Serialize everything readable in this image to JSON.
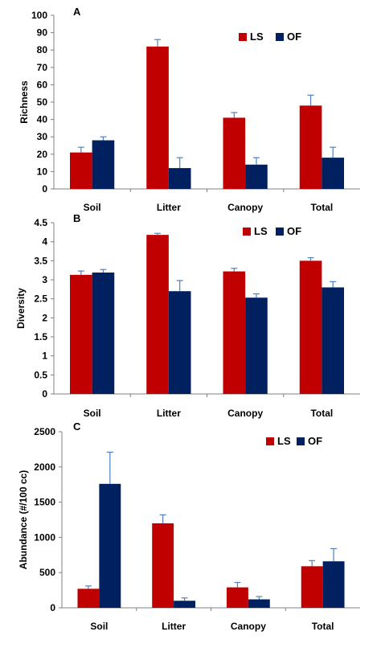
{
  "colors": {
    "LS": "#c00000",
    "OF": "#002060",
    "error": "#4f81bd",
    "axis": "#808080"
  },
  "chart_data": [
    {
      "panel": "A",
      "type": "bar",
      "ylabel": "Richness",
      "ylim": [
        0,
        100
      ],
      "yticks": [
        "0",
        "10",
        "20",
        "30",
        "40",
        "50",
        "60",
        "70",
        "80",
        "90",
        "100"
      ],
      "categories": [
        "Soil",
        "Litter",
        "Canopy",
        "Total"
      ],
      "legend": "top-right",
      "series": [
        {
          "name": "LS",
          "values": [
            21,
            82,
            41,
            48
          ],
          "errors": [
            3,
            4,
            3,
            6
          ]
        },
        {
          "name": "OF",
          "values": [
            28,
            12,
            14,
            18
          ],
          "errors": [
            2,
            6,
            4,
            6
          ]
        }
      ]
    },
    {
      "panel": "B",
      "type": "bar",
      "ylabel": "Diversity",
      "ylim": [
        0,
        4.5
      ],
      "yticks": [
        "0",
        "0.5",
        "1",
        "1.5",
        "2",
        "2.5",
        "3",
        "3.5",
        "4",
        "4.5"
      ],
      "categories": [
        "Soil",
        "Litter",
        "Canopy",
        "Total"
      ],
      "legend": "top-right",
      "series": [
        {
          "name": "LS",
          "values": [
            3.13,
            4.18,
            3.22,
            3.5
          ],
          "errors": [
            0.1,
            0.04,
            0.08,
            0.08
          ]
        },
        {
          "name": "OF",
          "values": [
            3.19,
            2.7,
            2.53,
            2.8
          ],
          "errors": [
            0.08,
            0.28,
            0.1,
            0.15
          ]
        }
      ]
    },
    {
      "panel": "C",
      "type": "bar",
      "ylabel": "Abundance (#/100 cc)",
      "ylim": [
        0,
        2500
      ],
      "yticks": [
        "0",
        "500",
        "1000",
        "1500",
        "2000",
        "2500"
      ],
      "categories": [
        "Soil",
        "Litter",
        "Canopy",
        "Total"
      ],
      "legend": "top-right",
      "series": [
        {
          "name": "LS",
          "values": [
            270,
            1200,
            290,
            590
          ],
          "errors": [
            40,
            120,
            70,
            80
          ]
        },
        {
          "name": "OF",
          "values": [
            1760,
            100,
            120,
            660
          ],
          "errors": [
            450,
            40,
            40,
            180
          ]
        }
      ]
    }
  ]
}
